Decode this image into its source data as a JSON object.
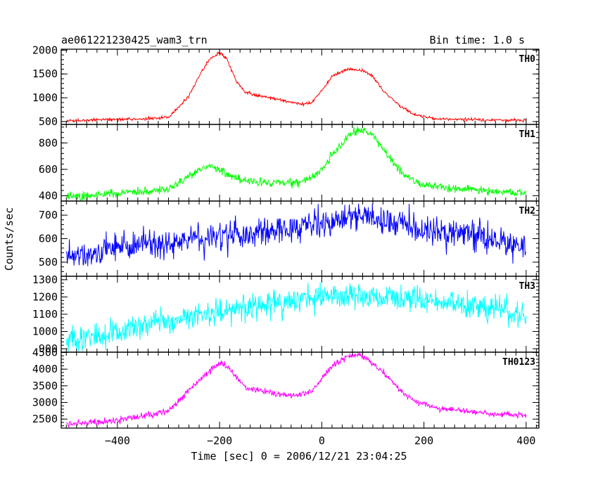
{
  "header": {
    "title": "ae061221230425_wam3_trn",
    "bin_time": "Bin time: 1.0 s"
  },
  "axes": {
    "ylabel": "Counts/sec",
    "xlabel": "Time [sec] 0 = 2006/12/21 23:04:25",
    "x_tick_labels": [
      "−400",
      "−200",
      "0",
      "200",
      "400"
    ]
  },
  "chart_data": {
    "type": "line",
    "x": [
      -500,
      400
    ],
    "xlim": [
      -510,
      425
    ],
    "x_ticks": [
      -400,
      -200,
      0,
      200,
      400
    ],
    "xlabel": "Time [sec] 0 = 2006/12/21 23:04:25",
    "ylabel": "Counts/sec",
    "title": "ae061221230425_wam3_trn",
    "subtitle": "Bin time: 1.0 s",
    "grid": false,
    "bin_seconds": 1.0,
    "panels": [
      {
        "name": "TH0",
        "color": "#ff0000",
        "ylim": [
          440,
          2020
        ],
        "y_ticks": [
          500,
          1000,
          1500,
          2000
        ],
        "y_tick_labels": [
          "500",
          "1000",
          "1500",
          "2000"
        ],
        "noise": 15,
        "profile_t": [
          -500,
          -400,
          -330,
          -300,
          -280,
          -260,
          -240,
          -220,
          -200,
          -185,
          -170,
          -150,
          -130,
          -100,
          -70,
          -40,
          -20,
          0,
          20,
          50,
          80,
          100,
          120,
          150,
          180,
          220,
          300,
          400
        ],
        "profile_v": [
          520,
          545,
          565,
          600,
          800,
          1050,
          1450,
          1800,
          1950,
          1800,
          1400,
          1120,
          1050,
          1000,
          930,
          860,
          900,
          1150,
          1450,
          1600,
          1580,
          1450,
          1150,
          850,
          650,
          560,
          540,
          520
        ]
      },
      {
        "name": "TH1",
        "color": "#00ff00",
        "ylim": [
          360,
          940
        ],
        "y_ticks": [
          400,
          600,
          800
        ],
        "y_tick_labels": [
          "400",
          "600",
          "800"
        ],
        "noise": 15,
        "profile_t": [
          -500,
          -400,
          -300,
          -270,
          -240,
          -220,
          -200,
          -180,
          -150,
          -100,
          -50,
          -20,
          0,
          30,
          60,
          80,
          100,
          130,
          160,
          200,
          300,
          400
        ],
        "profile_v": [
          390,
          420,
          450,
          520,
          600,
          630,
          600,
          550,
          510,
          500,
          500,
          530,
          600,
          750,
          880,
          900,
          860,
          700,
          560,
          480,
          440,
          420
        ]
      },
      {
        "name": "TH2",
        "color": "#0000ff",
        "ylim": [
          440,
          760
        ],
        "y_ticks": [
          500,
          600,
          700
        ],
        "y_tick_labels": [
          "500",
          "600",
          "700"
        ],
        "noise": 30,
        "profile_t": [
          -500,
          -400,
          -300,
          -200,
          -100,
          0,
          50,
          100,
          200,
          300,
          400
        ],
        "profile_v": [
          520,
          560,
          590,
          610,
          630,
          660,
          690,
          690,
          640,
          610,
          575
        ]
      },
      {
        "name": "TH3",
        "color": "#00ffff",
        "ylim": [
          880,
          1320
        ],
        "y_ticks": [
          900,
          1000,
          1100,
          1200,
          1300
        ],
        "y_tick_labels": [
          "900",
          "1000",
          "1100",
          "1200",
          "1300"
        ],
        "noise": 38,
        "profile_t": [
          -500,
          -400,
          -300,
          -200,
          -100,
          0,
          50,
          100,
          200,
          300,
          400
        ],
        "profile_v": [
          940,
          990,
          1060,
          1110,
          1160,
          1200,
          1210,
          1200,
          1180,
          1150,
          1090
        ]
      },
      {
        "name": "TH0123",
        "color": "#ff00ff",
        "ylim": [
          2230,
          4510
        ],
        "y_ticks": [
          2500,
          3000,
          3500,
          4000,
          4500
        ],
        "y_tick_labels": [
          "2500",
          "3000",
          "3500",
          "4000",
          "4500"
        ],
        "noise": 45,
        "profile_t": [
          -500,
          -400,
          -330,
          -300,
          -280,
          -250,
          -220,
          -200,
          -185,
          -170,
          -150,
          -120,
          -80,
          -50,
          -20,
          0,
          20,
          50,
          70,
          90,
          120,
          150,
          180,
          220,
          300,
          400
        ],
        "profile_v": [
          2350,
          2450,
          2650,
          2750,
          3050,
          3500,
          3950,
          4200,
          4100,
          3800,
          3450,
          3350,
          3250,
          3200,
          3350,
          3700,
          4100,
          4400,
          4450,
          4300,
          3900,
          3400,
          3050,
          2850,
          2700,
          2600
        ]
      }
    ]
  }
}
